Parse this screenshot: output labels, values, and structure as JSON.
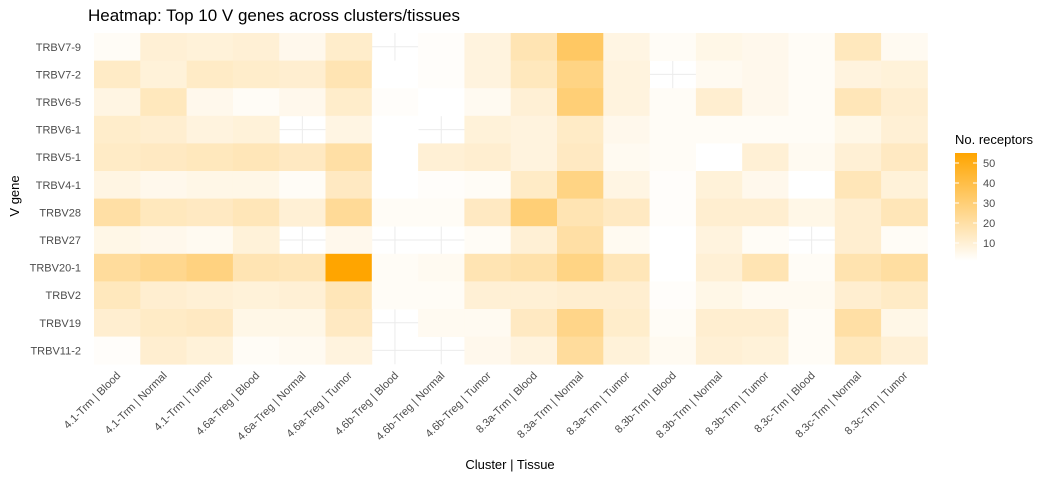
{
  "chart_data": {
    "type": "heatmap",
    "title": "Heatmap: Top 10 V genes across clusters/tissues",
    "xlabel": "Cluster | Tissue",
    "ylabel": "V gene",
    "legend_title": "No. receptors",
    "legend_ticks": [
      10,
      20,
      30,
      40,
      50
    ],
    "legend_range": [
      1,
      55
    ],
    "color_low": "#ffffff",
    "color_high": "#ffa500",
    "x_categories": [
      "4.1-Trm | Blood",
      "4.1-Trm | Normal",
      "4.1-Trm | Tumor",
      "4.6a-Treg | Blood",
      "4.6a-Treg | Normal",
      "4.6a-Treg | Tumor",
      "4.6b-Treg | Blood",
      "4.6b-Treg | Normal",
      "4.6b-Treg | Tumor",
      "8.3a-Trm | Blood",
      "8.3a-Trm | Normal",
      "8.3a-Trm | Tumor",
      "8.3b-Trm | Blood",
      "8.3b-Trm | Normal",
      "8.3b-Trm | Tumor",
      "8.3c-Trm | Blood",
      "8.3c-Trm | Normal",
      "8.3c-Trm | Tumor"
    ],
    "y_categories": [
      "TRBV7-9",
      "TRBV7-2",
      "TRBV6-5",
      "TRBV6-1",
      "TRBV5-1",
      "TRBV4-1",
      "TRBV28",
      "TRBV27",
      "TRBV20-1",
      "TRBV2",
      "TRBV19",
      "TRBV11-2"
    ],
    "values": [
      [
        3,
        10,
        9,
        10,
        5,
        12,
        null,
        2,
        8,
        17,
        34,
        7,
        3,
        6,
        5,
        3,
        15,
        4
      ],
      [
        13,
        9,
        13,
        12,
        11,
        17,
        1,
        2,
        8,
        15,
        27,
        8,
        null,
        4,
        5,
        3,
        8,
        9
      ],
      [
        7,
        15,
        5,
        3,
        5,
        12,
        2,
        1,
        4,
        10,
        30,
        8,
        3,
        11,
        5,
        3,
        16,
        11
      ],
      [
        12,
        11,
        8,
        9,
        null,
        7,
        1,
        null,
        9,
        8,
        13,
        5,
        3,
        3,
        3,
        3,
        6,
        10
      ],
      [
        13,
        14,
        15,
        16,
        14,
        20,
        1,
        10,
        11,
        8,
        14,
        4,
        3,
        1,
        10,
        4,
        10,
        14
      ],
      [
        7,
        5,
        6,
        6,
        3,
        14,
        1,
        2,
        3,
        13,
        27,
        7,
        2,
        9,
        5,
        1,
        16,
        9
      ],
      [
        20,
        15,
        14,
        16,
        10,
        23,
        3,
        3,
        14,
        30,
        17,
        14,
        2,
        11,
        11,
        6,
        11,
        16
      ],
      [
        6,
        5,
        4,
        9,
        null,
        5,
        null,
        null,
        3,
        10,
        20,
        4,
        1,
        8,
        3,
        null,
        11,
        3
      ],
      [
        22,
        25,
        28,
        17,
        16,
        55,
        3,
        4,
        17,
        19,
        27,
        16,
        1,
        10,
        17,
        3,
        18,
        21
      ],
      [
        15,
        11,
        10,
        9,
        10,
        16,
        3,
        3,
        10,
        10,
        11,
        11,
        2,
        6,
        4,
        4,
        11,
        13
      ],
      [
        11,
        13,
        14,
        6,
        6,
        14,
        null,
        4,
        4,
        14,
        26,
        12,
        3,
        11,
        11,
        3,
        20,
        6
      ],
      [
        2,
        11,
        9,
        3,
        4,
        8,
        null,
        null,
        5,
        8,
        22,
        9,
        4,
        10,
        9,
        3,
        15,
        10
      ]
    ]
  }
}
